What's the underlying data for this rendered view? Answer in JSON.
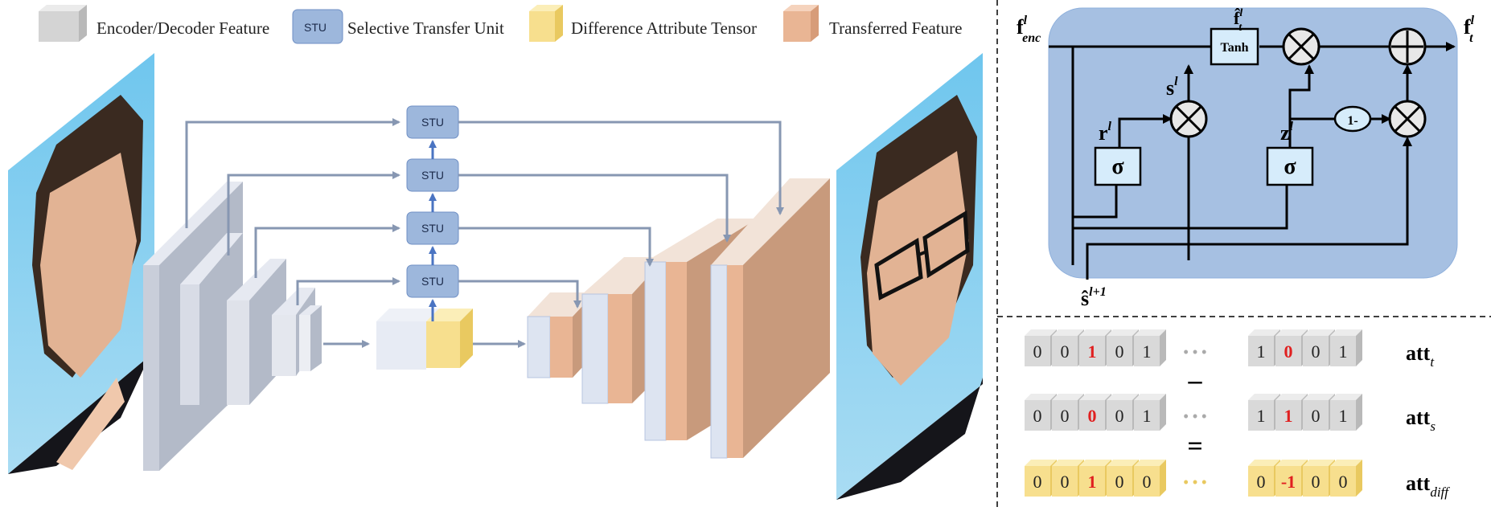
{
  "legend": {
    "encdec": "Encoder/Decoder Feature",
    "stu_badge": "STU",
    "stu": "Selective Transfer Unit",
    "diff": "Difference Attribute Tensor",
    "transferred": "Transferred Feature"
  },
  "stu_label": "STU",
  "gate": {
    "f_enc": "f",
    "f_enc_sup": "l",
    "f_enc_sub": "enc",
    "f_t": "f",
    "f_t_sup": "l",
    "f_t_sub": "t",
    "fhat": "f̂",
    "fhat_sup": "l",
    "fhat_sub": "t",
    "s": "s",
    "s_sup": "l",
    "r": "r",
    "r_sup": "l",
    "z": "z",
    "z_sup": "l",
    "sigma": "σ",
    "tanh": "Tanh",
    "one_minus": "1-",
    "shat": "ŝ",
    "shat_sup": "l+1"
  },
  "att": {
    "t": {
      "left": [
        "0",
        "0",
        "1",
        "0",
        "1"
      ],
      "right": [
        "1",
        "0",
        "0",
        "1"
      ],
      "label": "att",
      "sub": "t"
    },
    "s": {
      "left": [
        "0",
        "0",
        "0",
        "0",
        "1"
      ],
      "right": [
        "1",
        "1",
        "0",
        "1"
      ],
      "label": "att",
      "sub": "s"
    },
    "diff": {
      "left": [
        "0",
        "0",
        "1",
        "0",
        "0"
      ],
      "right": [
        "0",
        "-1",
        "0",
        "0"
      ],
      "label": "att",
      "sub": "diff"
    },
    "minus": "–",
    "equals": "=",
    "dots": "• • •"
  },
  "colors": {
    "gray": "#d4d4d4",
    "stu": "#9db7dc",
    "yellow": "#f7df8e",
    "orange": "#e9b594",
    "panel": "#a6c0e2",
    "arrow": "#8797b2"
  }
}
